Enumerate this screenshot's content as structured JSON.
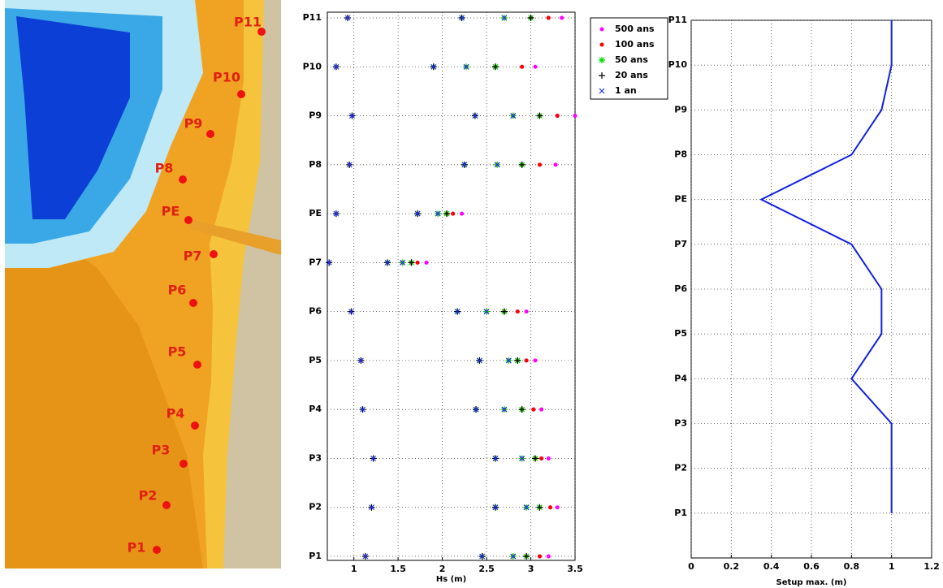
{
  "map": {
    "labels": [
      "P11",
      "P10",
      "P9",
      "P8",
      "PE",
      "P7",
      "P6",
      "P5",
      "P4",
      "P3",
      "P2",
      "P1"
    ]
  },
  "chart_data": [
    {
      "type": "scatter",
      "x_label": "Hs (m)",
      "categories": [
        "P1",
        "P2",
        "P3",
        "P4",
        "P5",
        "P6",
        "P7",
        "PE",
        "P8",
        "P9",
        "P10",
        "P11"
      ],
      "xlim": [
        0.7,
        3.5
      ],
      "xticks": [
        1,
        1.5,
        2,
        2.5,
        3,
        3.5
      ],
      "grid": true,
      "legend": "upper right",
      "series": [
        {
          "name": "500 ans",
          "color": "#ff00ff",
          "marker": "dot",
          "values": [
            [
              2.95,
              3.1,
              3.2
            ],
            [
              3.1,
              3.22,
              3.3
            ],
            [
              3.05,
              3.12,
              3.2
            ],
            [
              2.9,
              3.03,
              3.12
            ],
            [
              2.85,
              2.95,
              3.05
            ],
            [
              2.7,
              2.85,
              2.95
            ],
            [
              1.65,
              1.72,
              1.82
            ],
            [
              2.05,
              2.12,
              2.22
            ],
            [
              2.9,
              3.1,
              3.28
            ],
            [
              3.1,
              3.3,
              3.5
            ],
            [
              2.6,
              2.9,
              3.05
            ],
            [
              3.0,
              3.2,
              3.35
            ]
          ]
        },
        {
          "name": "100 ans",
          "color": "#ff0000",
          "marker": "dot",
          "values": [
            [
              2.8,
              2.95,
              3.1
            ],
            [
              2.95,
              3.1,
              3.22
            ],
            [
              2.9,
              3.05,
              3.12
            ],
            [
              2.7,
              2.9,
              3.03
            ],
            [
              2.75,
              2.85,
              2.95
            ],
            [
              2.5,
              2.7,
              2.85
            ],
            [
              1.55,
              1.65,
              1.72
            ],
            [
              1.95,
              2.05,
              2.12
            ],
            [
              2.62,
              2.9,
              3.1
            ],
            [
              2.8,
              3.1,
              3.3
            ],
            [
              2.27,
              2.6,
              2.9
            ],
            [
              2.7,
              3.0,
              3.2
            ]
          ]
        },
        {
          "name": "50 ans",
          "color": "#00dd00",
          "marker": "star",
          "values": [
            [
              2.45,
              2.8,
              2.95
            ],
            [
              2.6,
              2.95,
              3.1
            ],
            [
              2.6,
              2.9,
              3.05
            ],
            [
              2.38,
              2.7,
              2.9
            ],
            [
              2.42,
              2.75,
              2.85
            ],
            [
              2.17,
              2.5,
              2.7
            ],
            [
              1.38,
              1.55,
              1.65
            ],
            [
              1.72,
              1.95,
              2.05
            ],
            [
              2.25,
              2.62,
              2.9
            ],
            [
              2.37,
              2.8,
              3.1
            ],
            [
              1.9,
              2.27,
              2.6
            ],
            [
              2.22,
              2.7,
              3.0
            ]
          ]
        },
        {
          "name": "20 ans",
          "color": "#000000",
          "marker": "plus",
          "values": [
            [
              1.13,
              2.45,
              2.95
            ],
            [
              1.2,
              2.6,
              3.1
            ],
            [
              1.22,
              2.6,
              3.05
            ],
            [
              1.1,
              2.38,
              2.9
            ],
            [
              1.08,
              2.42,
              2.85
            ],
            [
              0.97,
              2.17,
              2.7
            ],
            [
              0.72,
              1.38,
              1.65
            ],
            [
              0.8,
              1.72,
              2.05
            ],
            [
              0.95,
              2.25,
              2.9
            ],
            [
              0.98,
              2.37,
              3.1
            ],
            [
              0.8,
              1.9,
              2.6
            ],
            [
              0.93,
              2.22,
              3.0
            ]
          ]
        },
        {
          "name": "1 an",
          "color": "#2030ff",
          "marker": "cross",
          "values": [
            [
              1.13,
              2.45,
              2.8
            ],
            [
              1.2,
              2.6,
              2.95
            ],
            [
              1.22,
              2.6,
              2.9
            ],
            [
              1.1,
              2.38,
              2.7
            ],
            [
              1.08,
              2.42,
              2.75
            ],
            [
              0.97,
              2.17,
              2.5
            ],
            [
              0.72,
              1.38,
              1.55
            ],
            [
              0.8,
              1.72,
              1.95
            ],
            [
              0.95,
              2.25,
              2.62
            ],
            [
              0.98,
              2.37,
              2.8
            ],
            [
              0.8,
              1.9,
              2.27
            ],
            [
              0.93,
              2.22,
              2.7
            ]
          ]
        }
      ]
    },
    {
      "type": "line",
      "x_label": "Setup max. (m)",
      "categories": [
        "P1",
        "P2",
        "P3",
        "P4",
        "P5",
        "P6",
        "P7",
        "PE",
        "P8",
        "P9",
        "P10",
        "P11"
      ],
      "xlim": [
        0,
        1.2
      ],
      "xticks": [
        0,
        0.2,
        0.4,
        0.6,
        0.8,
        1,
        1.2
      ],
      "grid": true,
      "color": "#1020e0",
      "values": [
        1,
        1,
        1,
        0.8,
        0.95,
        0.95,
        0.8,
        0.35,
        0.8,
        0.95,
        1,
        1
      ]
    }
  ]
}
